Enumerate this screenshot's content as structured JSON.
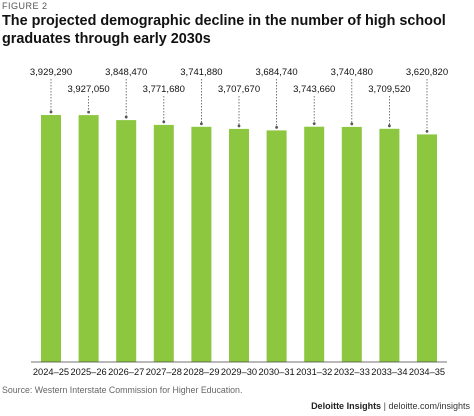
{
  "figure_label": "FIGURE 2",
  "source": "Source: Western Interstate Commission for Higher Education.",
  "footer": {
    "brand": "Deloitte Insights",
    "separator": "|",
    "site": "deloitte.com/insights"
  },
  "colors": {
    "bar": "#8DC63F",
    "connector": "#555555",
    "axis": "#444444"
  },
  "chart_data": {
    "type": "bar",
    "title": "The projected demographic decline in the number of high school graduates through early 2030s",
    "xlabel": "",
    "ylabel": "",
    "categories": [
      "2024–25",
      "2025–26",
      "2026–27",
      "2027–28",
      "2028–29",
      "2029–30",
      "2030–31",
      "2031–32",
      "2032–33",
      "2033–34",
      "2034–35"
    ],
    "values": [
      3929290,
      3927050,
      3848470,
      3771680,
      3741880,
      3707670,
      3684740,
      3743660,
      3740480,
      3709520,
      3620820
    ],
    "value_labels": [
      "3,929,290",
      "3,927,050",
      "3,848,470",
      "3,771,680",
      "3,741,880",
      "3,707,670",
      "3,684,740",
      "3,743,660",
      "3,740,480",
      "3,709,520",
      "3,620,820"
    ],
    "ylim": [
      0,
      3929290
    ],
    "grid": false,
    "legend": "none"
  }
}
